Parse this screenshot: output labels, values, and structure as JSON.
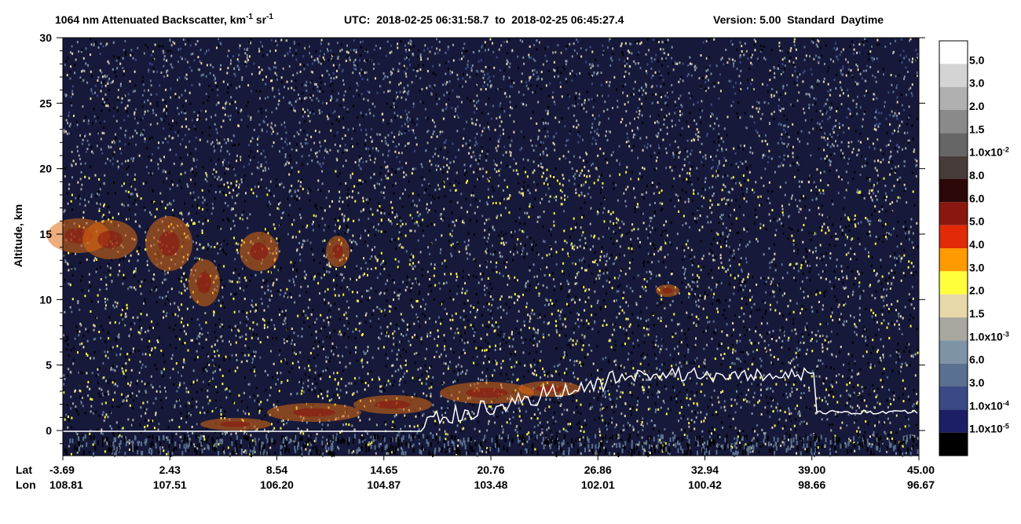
{
  "chart_data": {
    "type": "curtain",
    "title": {
      "parts": [
        "1064 nm Attenuated Backscatter, km",
        "-1",
        " sr",
        "-1"
      ],
      "utc": "UTC:  2018-02-25 06:31:58.7  to  2018-02-25 06:45:27.4",
      "version": "Version: 5.00  Standard  Daytime"
    },
    "y_label": "Altitude, km",
    "ylim": [
      -1.92,
      30
    ],
    "yticks": [
      0,
      5,
      10,
      15,
      20,
      25,
      30
    ],
    "x_rows": [
      {
        "name": "Lat",
        "labels": [
          "-3.69",
          "2.43",
          "8.54",
          "14.65",
          "20.76",
          "26.86",
          "32.94",
          "39.00",
          "45.00"
        ]
      },
      {
        "name": "Lon",
        "labels": [
          "108.81",
          "107.51",
          "106.20",
          "104.87",
          "103.48",
          "102.01",
          "100.42",
          "98.66",
          "96.67"
        ]
      }
    ],
    "colorbar": {
      "colors": [
        "#ffffff",
        "#d4d4d4",
        "#b0b0b0",
        "#8a8a8a",
        "#666666",
        "#463c3a",
        "#2c0808",
        "#8a1810",
        "#e22a08",
        "#ff9a00",
        "#ffff3c",
        "#e6d8a8",
        "#a8a8a0",
        "#7f93a6",
        "#5a7090",
        "#3a4a86",
        "#1c1e66",
        "#000000"
      ],
      "labels": [
        {
          "text": "5.0"
        },
        {
          "text": "3.0"
        },
        {
          "text": "2.0"
        },
        {
          "text": "1.5"
        },
        {
          "text": "1.0x10",
          "sup": "-2"
        },
        {
          "text": "8.0"
        },
        {
          "text": "6.0"
        },
        {
          "text": "5.0"
        },
        {
          "text": "4.0"
        },
        {
          "text": "3.0"
        },
        {
          "text": "2.0"
        },
        {
          "text": "1.5"
        },
        {
          "text": "1.0x10",
          "sup": "-3"
        },
        {
          "text": "6.0"
        },
        {
          "text": "3.0"
        },
        {
          "text": "1.0x10",
          "sup": "-4"
        },
        {
          "text": "1.0x10",
          "sup": "-5"
        }
      ]
    }
  }
}
